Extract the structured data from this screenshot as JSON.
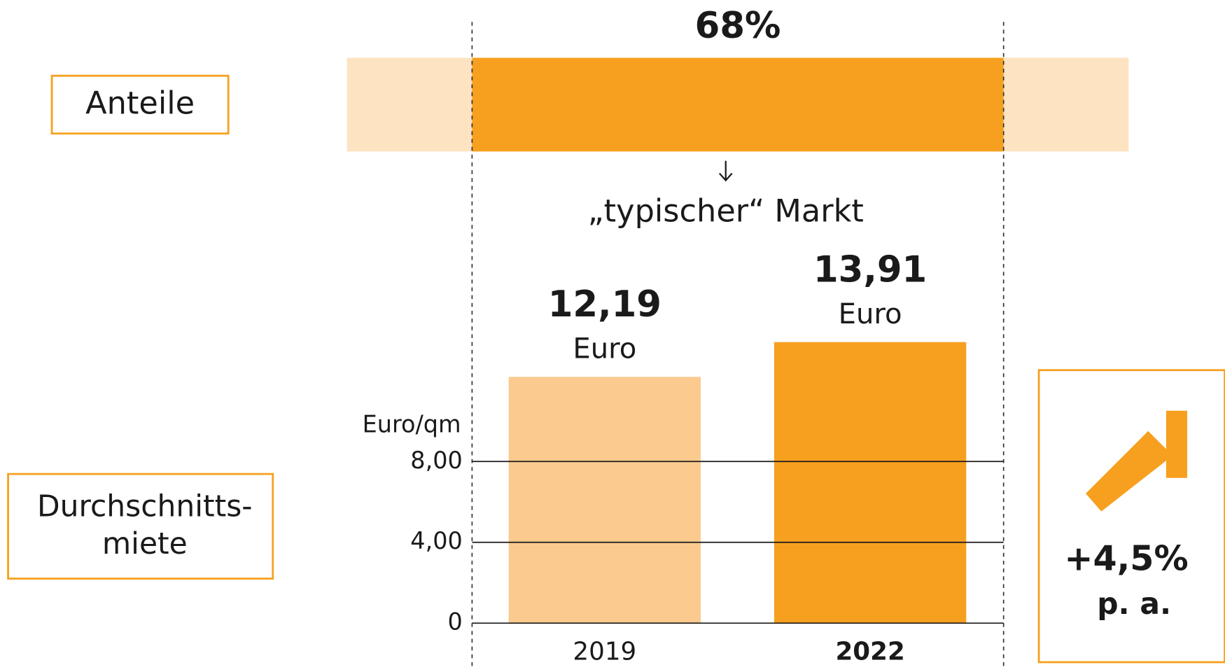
{
  "chart_data": [
    {
      "type": "share",
      "label": "Anteile",
      "value": 68,
      "value_label": "68%",
      "xlim": [
        0,
        100
      ],
      "color": "#f7a01f",
      "background": "#fde3c2",
      "annotation": "„typischer“ Markt"
    },
    {
      "type": "bar",
      "label": [
        "Durchschnitts-",
        "miete"
      ],
      "ylabel": "Euro/qm",
      "categories": [
        "2019",
        "2022"
      ],
      "values": [
        12.19,
        13.91
      ],
      "value_labels": [
        "12,19",
        "13,91"
      ],
      "unit": "Euro",
      "colors": [
        "#fbca8e",
        "#f7a01f"
      ],
      "ylim": [
        0,
        16
      ],
      "yticks": [
        0,
        {
          "value": 4,
          "label": "4,00"
        },
        {
          "value": 8,
          "label": "8,00"
        }
      ],
      "growth": {
        "label": "+4,5%",
        "sub": "p. a.",
        "color": "#f7a01f"
      }
    }
  ]
}
